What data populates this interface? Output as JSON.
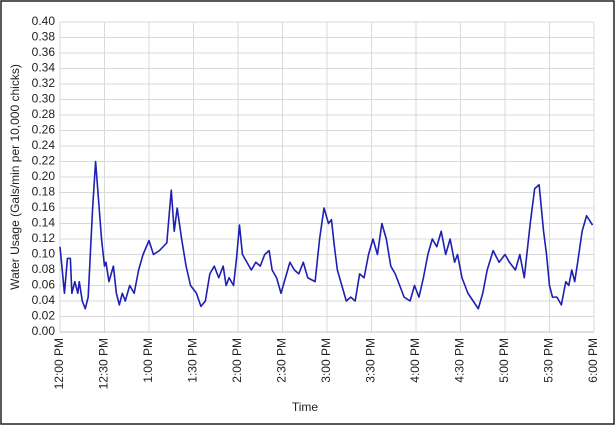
{
  "chart_data": {
    "type": "line",
    "x_label": "Time",
    "y_label": "Water Usage (Gals/min per 10,000 chicks)",
    "x": [
      0,
      3,
      5,
      7,
      8,
      10,
      12,
      13,
      15,
      17,
      19,
      22,
      24,
      26,
      28,
      30,
      31,
      33,
      36,
      38,
      40,
      42,
      44,
      47,
      50,
      53,
      56,
      60,
      63,
      67,
      72,
      75,
      77,
      79,
      82,
      85,
      88,
      92,
      95,
      98,
      101,
      104,
      107,
      110,
      112,
      114,
      117,
      119,
      121,
      123,
      126,
      129,
      132,
      135,
      138,
      141,
      143,
      146,
      149,
      152,
      155,
      158,
      161,
      164,
      167,
      172,
      175,
      178,
      181,
      183,
      185,
      187,
      190,
      193,
      196,
      199,
      202,
      205,
      208,
      211,
      214,
      217,
      220,
      223,
      226,
      229,
      232,
      236,
      239,
      242,
      245,
      248,
      251,
      254,
      257,
      260,
      263,
      266,
      268,
      271,
      275,
      282,
      285,
      288,
      292,
      296,
      300,
      303,
      307,
      310,
      313,
      317,
      320,
      323,
      326,
      328,
      330,
      332,
      335,
      338,
      341,
      343,
      345,
      347,
      349,
      352,
      355,
      359
    ],
    "series": [
      {
        "name": "Water Usage",
        "color": "#1f1fb4",
        "values": [
          0.11,
          0.05,
          0.095,
          0.095,
          0.05,
          0.065,
          0.05,
          0.065,
          0.04,
          0.03,
          0.045,
          0.16,
          0.22,
          0.17,
          0.12,
          0.085,
          0.09,
          0.065,
          0.085,
          0.05,
          0.035,
          0.05,
          0.04,
          0.06,
          0.05,
          0.08,
          0.1,
          0.118,
          0.1,
          0.105,
          0.115,
          0.183,
          0.13,
          0.16,
          0.12,
          0.085,
          0.06,
          0.05,
          0.033,
          0.04,
          0.075,
          0.085,
          0.07,
          0.085,
          0.06,
          0.07,
          0.06,
          0.095,
          0.138,
          0.1,
          0.09,
          0.08,
          0.09,
          0.085,
          0.1,
          0.105,
          0.08,
          0.07,
          0.05,
          0.07,
          0.09,
          0.08,
          0.075,
          0.09,
          0.07,
          0.065,
          0.12,
          0.16,
          0.14,
          0.145,
          0.11,
          0.08,
          0.06,
          0.04,
          0.045,
          0.04,
          0.075,
          0.07,
          0.1,
          0.12,
          0.1,
          0.14,
          0.12,
          0.085,
          0.075,
          0.06,
          0.045,
          0.04,
          0.06,
          0.045,
          0.07,
          0.1,
          0.12,
          0.11,
          0.13,
          0.1,
          0.12,
          0.09,
          0.1,
          0.07,
          0.05,
          0.03,
          0.05,
          0.08,
          0.105,
          0.09,
          0.1,
          0.09,
          0.08,
          0.1,
          0.07,
          0.14,
          0.185,
          0.19,
          0.13,
          0.1,
          0.06,
          0.045,
          0.045,
          0.035,
          0.065,
          0.06,
          0.08,
          0.065,
          0.09,
          0.13,
          0.15,
          0.138
        ]
      }
    ],
    "xlim": [
      0,
      360
    ],
    "xticks": [
      {
        "value": 0,
        "label": "12:00 PM"
      },
      {
        "value": 30,
        "label": "12:30 PM"
      },
      {
        "value": 60,
        "label": "1:00 PM"
      },
      {
        "value": 90,
        "label": "1:30 PM"
      },
      {
        "value": 120,
        "label": "2:00 PM"
      },
      {
        "value": 150,
        "label": "2:30 PM"
      },
      {
        "value": 180,
        "label": "3:00 PM"
      },
      {
        "value": 210,
        "label": "3:30 PM"
      },
      {
        "value": 240,
        "label": "4:00 PM"
      },
      {
        "value": 270,
        "label": "4:30 PM"
      },
      {
        "value": 300,
        "label": "5:00 PM"
      },
      {
        "value": 330,
        "label": "5:30 PM"
      },
      {
        "value": 360,
        "label": "6:00 PM"
      }
    ],
    "ylim": [
      0,
      0.4
    ],
    "yticks": [
      {
        "value": 0,
        "label": "0.00"
      },
      {
        "value": 0.02,
        "label": "0.02"
      },
      {
        "value": 0.04,
        "label": "0.04"
      },
      {
        "value": 0.06,
        "label": "0.06"
      },
      {
        "value": 0.08,
        "label": "0.08"
      },
      {
        "value": 0.1,
        "label": "0.10"
      },
      {
        "value": 0.12,
        "label": "0.12"
      },
      {
        "value": 0.14,
        "label": "0.14"
      },
      {
        "value": 0.16,
        "label": "0.16"
      },
      {
        "value": 0.18,
        "label": "0.18"
      },
      {
        "value": 0.2,
        "label": "0.20"
      },
      {
        "value": 0.22,
        "label": "0.22"
      },
      {
        "value": 0.24,
        "label": "0.24"
      },
      {
        "value": 0.26,
        "label": "0.26"
      },
      {
        "value": 0.28,
        "label": "0.28"
      },
      {
        "value": 0.3,
        "label": "0.30"
      },
      {
        "value": 0.32,
        "label": "0.32"
      },
      {
        "value": 0.34,
        "label": "0.34"
      },
      {
        "value": 0.36,
        "label": "0.36"
      },
      {
        "value": 0.38,
        "label": "0.38"
      },
      {
        "value": 0.4,
        "label": "0.40"
      }
    ],
    "grid": true
  }
}
